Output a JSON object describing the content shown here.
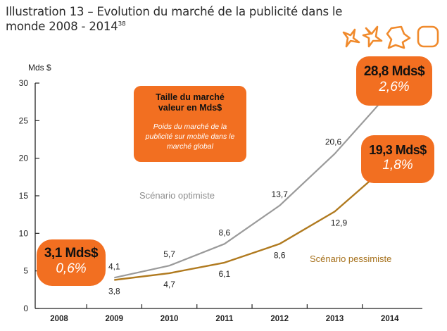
{
  "header": {
    "title_line1": "Illustration 13 – Evolution du marché de la publicité dans le",
    "title_line2": "monde 2008 - 2014",
    "footnote": "38"
  },
  "legend_box": {
    "title": "Taille du marché valeur en Mds$",
    "subtitle": "Poids du marché de la publicité sur mobile dans le marché global"
  },
  "callouts": {
    "start": {
      "value": "3,1 Mds$",
      "share": "0,6%"
    },
    "optimistic_end": {
      "value": "28,8 Mds$",
      "share": "2,6%"
    },
    "pessimistic_end": {
      "value": "19,3 Mds$",
      "share": "1,8%"
    }
  },
  "scenario_labels": {
    "optimistic": "Scénario optimiste",
    "pessimistic": "Scénario pessimiste"
  },
  "colors": {
    "accent": "#f26f21",
    "optimistic": "#9a9a9a",
    "pessimistic": "#b07a1f",
    "axis": "#222222"
  },
  "chart_data": {
    "type": "line",
    "title": "Evolution du marché de la publicité dans le monde 2008 - 2014",
    "ylabel": "Mds $",
    "xlabel": "",
    "ylim": [
      0,
      30
    ],
    "yticks": [
      0,
      5,
      10,
      15,
      20,
      25,
      30
    ],
    "categories": [
      "2008",
      "2009",
      "2010",
      "2011",
      "2012",
      "2013",
      "2014"
    ],
    "series": [
      {
        "name": "Scénario optimiste",
        "x": [
          "2008",
          "2009",
          "2010",
          "2011",
          "2012",
          "2013",
          "2014"
        ],
        "values": [
          3.1,
          4.1,
          5.7,
          8.6,
          13.7,
          20.6,
          28.8
        ],
        "labels": [
          "",
          "4,1",
          "5,7",
          "8,6",
          "13,7",
          "20,6",
          ""
        ]
      },
      {
        "name": "Scénario pessimiste",
        "x": [
          "2008",
          "2009",
          "2010",
          "2011",
          "2012",
          "2013",
          "2014"
        ],
        "values": [
          3.1,
          3.8,
          4.7,
          6.1,
          8.6,
          12.9,
          19.3
        ],
        "labels": [
          "",
          "3,8",
          "4,7",
          "6,1",
          "8,6",
          "12,9",
          ""
        ]
      }
    ]
  }
}
